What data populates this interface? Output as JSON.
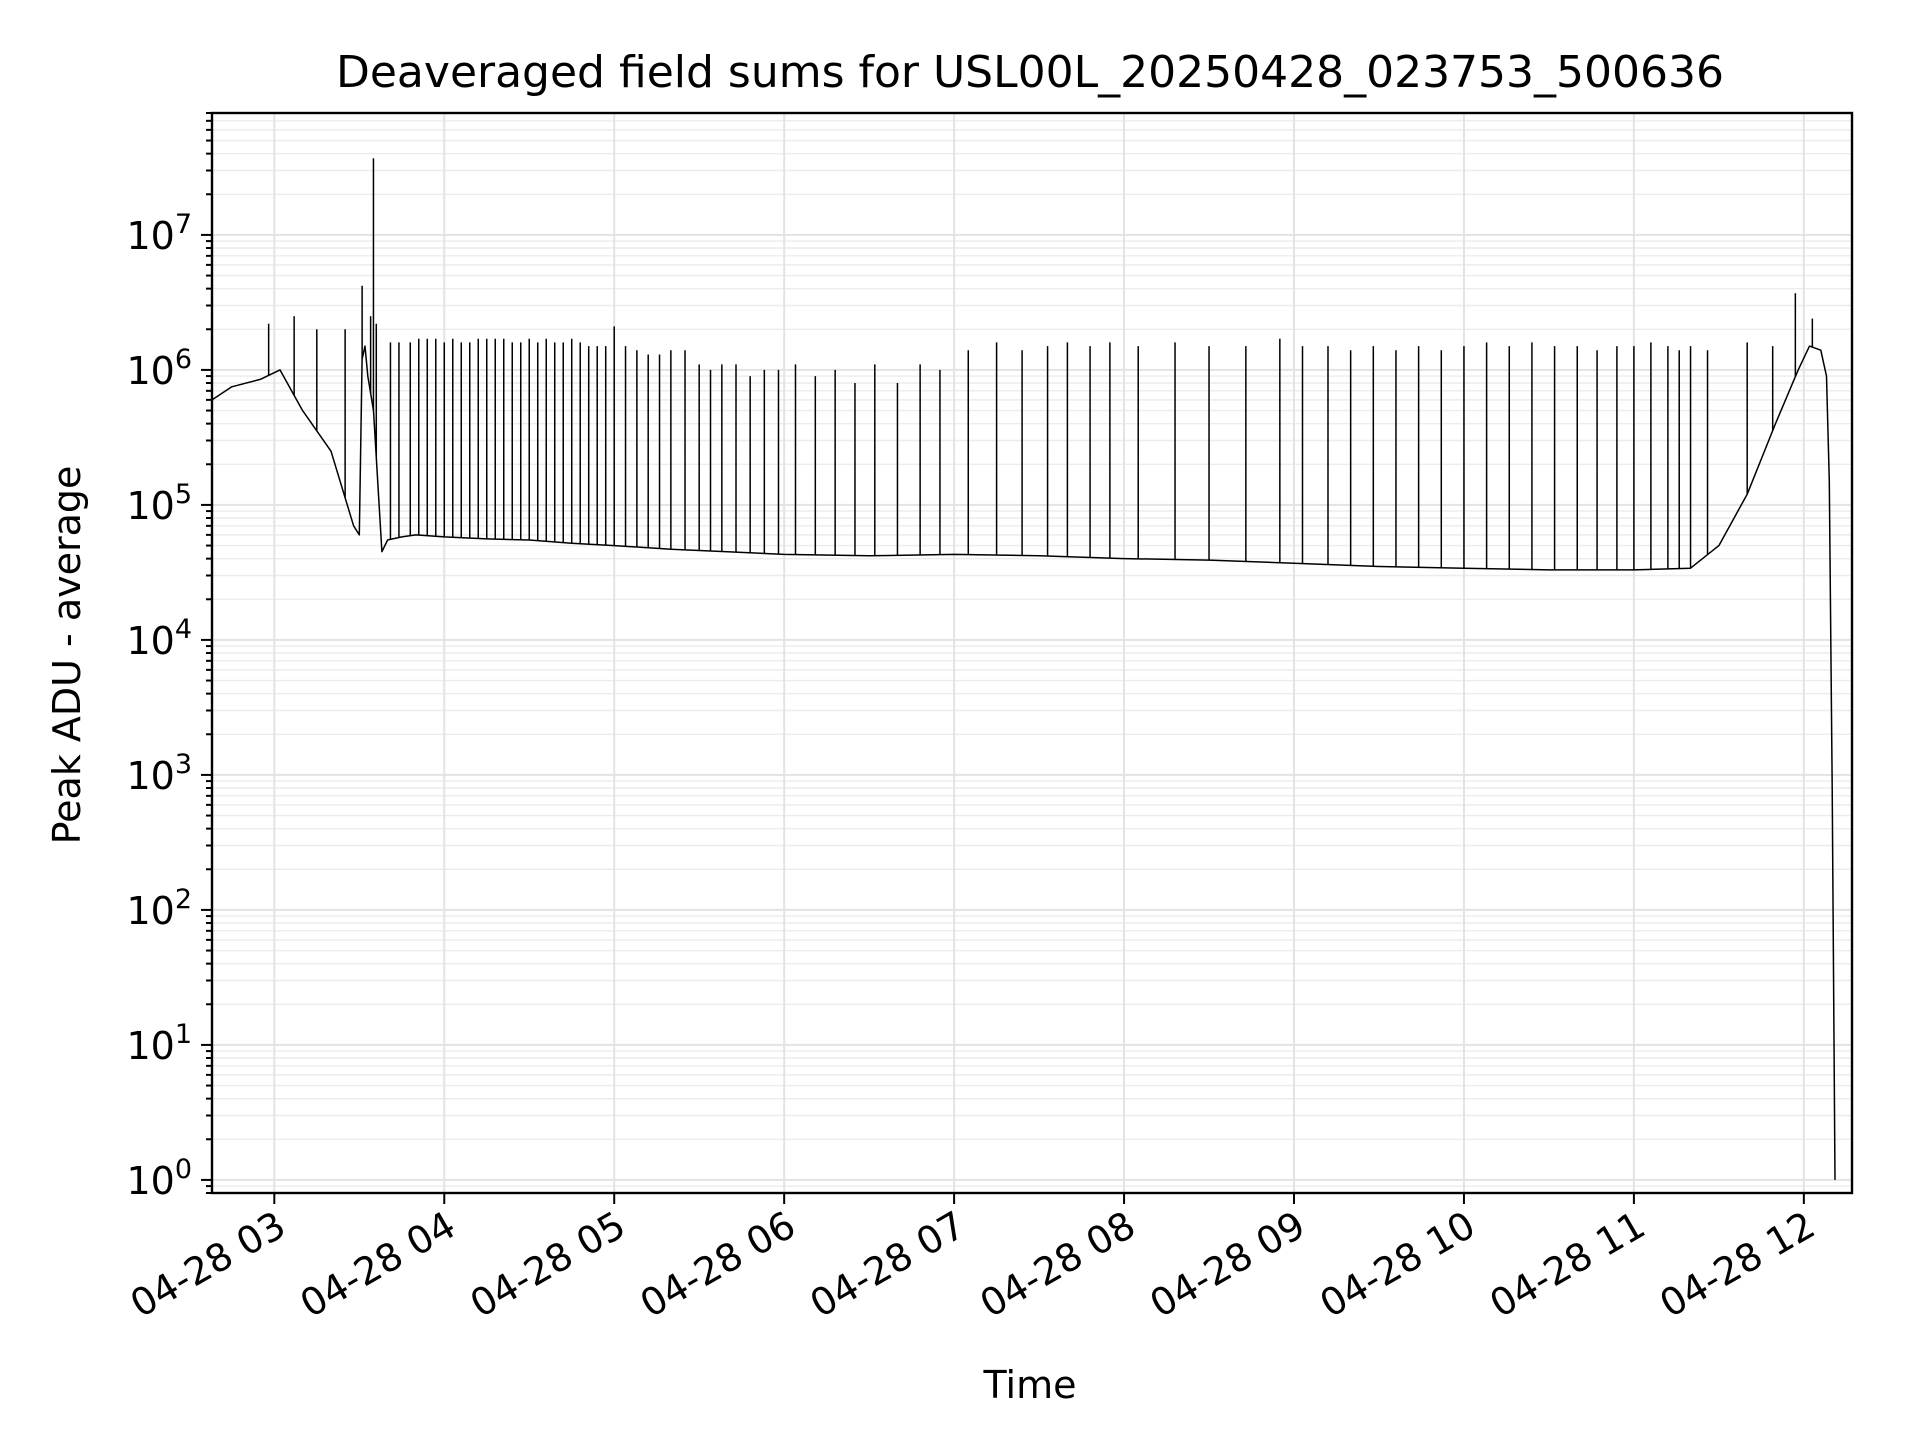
{
  "chart_data": {
    "type": "line",
    "title": "Deaveraged field sums for USL00L_20250428_023753_500636",
    "xlabel": "Time",
    "ylabel": "Peak ADU - average",
    "xscale": "time",
    "yscale": "log",
    "xlim": [
      "2025-04-28T02:38",
      "2025-04-28T12:17"
    ],
    "ylim": [
      0.8,
      80000000
    ],
    "grid": true,
    "line_color": "#000000",
    "x_tick_labels": [
      "04-28 03",
      "04-28 04",
      "04-28 05",
      "04-28 06",
      "04-28 07",
      "04-28 08",
      "04-28 09",
      "04-28 10",
      "04-28 11",
      "04-28 12"
    ],
    "x_ticks": [
      "2025-04-28T03:00",
      "2025-04-28T04:00",
      "2025-04-28T05:00",
      "2025-04-28T06:00",
      "2025-04-28T07:00",
      "2025-04-28T08:00",
      "2025-04-28T09:00",
      "2025-04-28T10:00",
      "2025-04-28T11:00",
      "2025-04-28T12:00"
    ],
    "y_ticks": [
      1,
      10,
      100,
      1000,
      10000,
      100000,
      1000000,
      10000000
    ],
    "y_tick_labels": [
      {
        "base": "10",
        "exp": "0"
      },
      {
        "base": "10",
        "exp": "1"
      },
      {
        "base": "10",
        "exp": "2"
      },
      {
        "base": "10",
        "exp": "3"
      },
      {
        "base": "10",
        "exp": "4"
      },
      {
        "base": "10",
        "exp": "5"
      },
      {
        "base": "10",
        "exp": "6"
      },
      {
        "base": "10",
        "exp": "7"
      }
    ],
    "series": [
      {
        "x": [
          "2025-04-28T02:38",
          "2025-04-28T02:45",
          "2025-04-28T02:55",
          "2025-04-28T03:02",
          "2025-04-28T03:10",
          "2025-04-28T03:20",
          "2025-04-28T03:28",
          "2025-04-28T03:30",
          "2025-04-28T03:31",
          "2025-04-28T03:32",
          "2025-04-28T03:33",
          "2025-04-28T03:35",
          "2025-04-28T03:38",
          "2025-04-28T03:40",
          "2025-04-28T03:45",
          "2025-04-28T03:50",
          "2025-04-28T04:00",
          "2025-04-28T04:15",
          "2025-04-28T04:30",
          "2025-04-28T04:45",
          "2025-04-28T05:00",
          "2025-04-28T05:20",
          "2025-04-28T05:40",
          "2025-04-28T06:00",
          "2025-04-28T06:30",
          "2025-04-28T07:00",
          "2025-04-28T07:30",
          "2025-04-28T08:00",
          "2025-04-28T08:30",
          "2025-04-28T09:00",
          "2025-04-28T09:30",
          "2025-04-28T10:00",
          "2025-04-28T10:30",
          "2025-04-28T11:00",
          "2025-04-28T11:20",
          "2025-04-28T11:30",
          "2025-04-28T11:40",
          "2025-04-28T11:50",
          "2025-04-28T11:58",
          "2025-04-28T12:02",
          "2025-04-28T12:06",
          "2025-04-28T12:08",
          "2025-04-28T12:09",
          "2025-04-28T12:10",
          "2025-04-28T12:11"
        ],
        "y": [
          600000,
          750000,
          850000,
          1000000,
          500000,
          250000,
          70000,
          60000,
          1200000,
          1500000,
          900000,
          500000,
          45000,
          55000,
          58000,
          60000,
          58000,
          56000,
          55000,
          52000,
          50000,
          47000,
          45000,
          43000,
          42000,
          43000,
          42000,
          40000,
          39000,
          37000,
          35000,
          34000,
          33000,
          33000,
          34000,
          50000,
          120000,
          400000,
          1000000,
          1500000,
          1400000,
          900000,
          150000,
          800,
          1
        ]
      }
    ],
    "spikes": {
      "x": [
        "2025-04-28T02:58",
        "2025-04-28T03:07",
        "2025-04-28T03:15",
        "2025-04-28T03:25",
        "2025-04-28T03:31",
        "2025-04-28T03:34",
        "2025-04-28T03:35",
        "2025-04-28T03:36",
        "2025-04-28T03:41",
        "2025-04-28T03:44",
        "2025-04-28T03:48",
        "2025-04-28T03:51",
        "2025-04-28T03:54",
        "2025-04-28T03:57",
        "2025-04-28T04:00",
        "2025-04-28T04:03",
        "2025-04-28T04:06",
        "2025-04-28T04:09",
        "2025-04-28T04:12",
        "2025-04-28T04:15",
        "2025-04-28T04:18",
        "2025-04-28T04:21",
        "2025-04-28T04:24",
        "2025-04-28T04:27",
        "2025-04-28T04:30",
        "2025-04-28T04:33",
        "2025-04-28T04:36",
        "2025-04-28T04:39",
        "2025-04-28T04:42",
        "2025-04-28T04:45",
        "2025-04-28T04:48",
        "2025-04-28T04:51",
        "2025-04-28T04:54",
        "2025-04-28T04:57",
        "2025-04-28T05:00",
        "2025-04-28T05:04",
        "2025-04-28T05:08",
        "2025-04-28T05:12",
        "2025-04-28T05:16",
        "2025-04-28T05:20",
        "2025-04-28T05:25",
        "2025-04-28T05:30",
        "2025-04-28T05:34",
        "2025-04-28T05:38",
        "2025-04-28T05:43",
        "2025-04-28T05:48",
        "2025-04-28T05:53",
        "2025-04-28T05:58",
        "2025-04-28T06:04",
        "2025-04-28T06:11",
        "2025-04-28T06:18",
        "2025-04-28T06:25",
        "2025-04-28T06:32",
        "2025-04-28T06:40",
        "2025-04-28T06:48",
        "2025-04-28T06:55",
        "2025-04-28T07:05",
        "2025-04-28T07:15",
        "2025-04-28T07:24",
        "2025-04-28T07:33",
        "2025-04-28T07:40",
        "2025-04-28T07:48",
        "2025-04-28T07:55",
        "2025-04-28T08:05",
        "2025-04-28T08:18",
        "2025-04-28T08:30",
        "2025-04-28T08:43",
        "2025-04-28T08:55",
        "2025-04-28T09:03",
        "2025-04-28T09:12",
        "2025-04-28T09:20",
        "2025-04-28T09:28",
        "2025-04-28T09:36",
        "2025-04-28T09:44",
        "2025-04-28T09:52",
        "2025-04-28T10:00",
        "2025-04-28T10:08",
        "2025-04-28T10:16",
        "2025-04-28T10:24",
        "2025-04-28T10:32",
        "2025-04-28T10:40",
        "2025-04-28T10:47",
        "2025-04-28T10:54",
        "2025-04-28T11:00",
        "2025-04-28T11:06",
        "2025-04-28T11:12",
        "2025-04-28T11:16",
        "2025-04-28T11:20",
        "2025-04-28T11:26",
        "2025-04-28T11:40",
        "2025-04-28T11:49",
        "2025-04-28T11:57",
        "2025-04-28T12:03"
      ],
      "y": [
        2200000,
        2500000,
        2000000,
        2000000,
        4200000,
        2500000,
        37000000,
        2200000,
        1600000,
        1600000,
        1600000,
        1700000,
        1700000,
        1700000,
        1600000,
        1700000,
        1600000,
        1600000,
        1700000,
        1700000,
        1700000,
        1700000,
        1600000,
        1600000,
        1700000,
        1600000,
        1700000,
        1600000,
        1600000,
        1700000,
        1600000,
        1500000,
        1500000,
        1500000,
        2100000,
        1500000,
        1400000,
        1300000,
        1300000,
        1400000,
        1400000,
        1100000,
        1000000,
        1100000,
        1100000,
        900000,
        1000000,
        1000000,
        1100000,
        900000,
        1000000,
        800000,
        1100000,
        800000,
        1100000,
        1000000,
        1400000,
        1600000,
        1400000,
        1500000,
        1600000,
        1500000,
        1600000,
        1500000,
        1600000,
        1500000,
        1500000,
        1700000,
        1500000,
        1500000,
        1400000,
        1500000,
        1400000,
        1500000,
        1400000,
        1500000,
        1600000,
        1500000,
        1600000,
        1500000,
        1500000,
        1400000,
        1500000,
        1500000,
        1600000,
        1500000,
        1400000,
        1500000,
        1400000,
        1600000,
        1500000,
        3700000,
        2400000
      ]
    }
  }
}
